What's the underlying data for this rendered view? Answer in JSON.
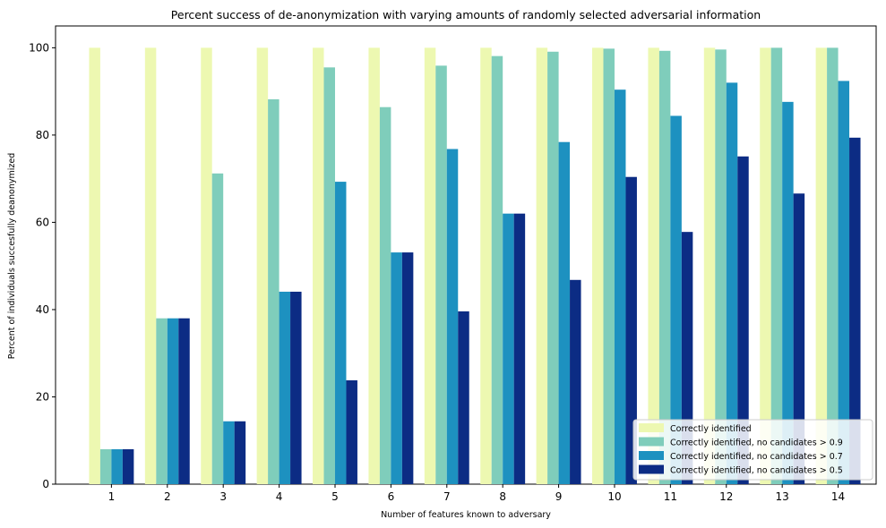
{
  "chart_data": {
    "type": "bar",
    "title": "Percent success of de-anonymization with varying amounts of randomly selected adversarial information",
    "xlabel": "Number of features known to adversary",
    "ylabel": "Percent of individuals succesfully deanonymized",
    "categories": [
      "1",
      "2",
      "3",
      "4",
      "5",
      "6",
      "7",
      "8",
      "9",
      "10",
      "11",
      "12",
      "13",
      "14"
    ],
    "ylim": [
      0,
      105
    ],
    "yticks": [
      0,
      20,
      40,
      60,
      80,
      100
    ],
    "grid": false,
    "legend_position": "bottom-right",
    "series": [
      {
        "name": "Correctly identified",
        "color": "#edf8b1",
        "values": [
          100,
          100,
          100,
          100,
          100,
          100,
          100,
          100,
          100,
          100,
          100,
          100,
          100,
          100
        ]
      },
      {
        "name": "Correctly identified, no candidates > 0.9",
        "color": "#7fcdbb",
        "values": [
          8,
          38,
          71.2,
          88.2,
          95.5,
          86.4,
          95.9,
          98.1,
          99.1,
          99.8,
          99.3,
          99.6,
          100,
          100
        ]
      },
      {
        "name": "Correctly identified, no candidates > 0.7",
        "color": "#1d91c0",
        "values": [
          8,
          38,
          14.4,
          44.1,
          69.3,
          53.1,
          76.8,
          62,
          78.4,
          90.4,
          84.4,
          92,
          87.6,
          92.4
        ]
      },
      {
        "name": "Correctly identified, no candidates > 0.5",
        "color": "#0c2c84",
        "values": [
          8,
          38,
          14.4,
          44.1,
          23.8,
          53.1,
          39.6,
          62,
          46.8,
          70.4,
          57.8,
          75.1,
          66.6,
          79.4
        ]
      }
    ]
  }
}
